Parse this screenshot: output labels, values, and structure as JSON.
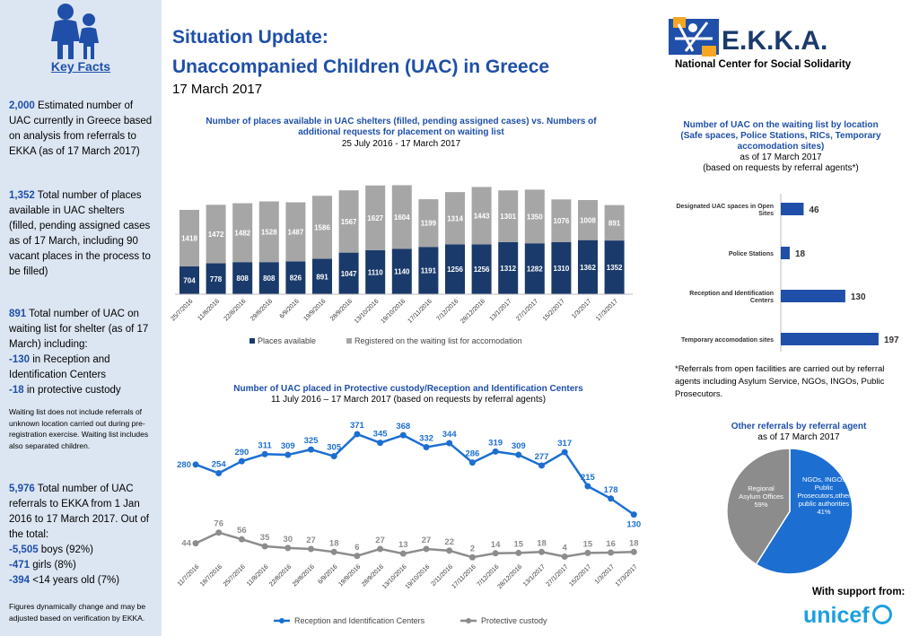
{
  "sidebar": {
    "key_facts": "Key Facts",
    "f1_num": "2,000",
    "f1_text": " Estimated number of UAC currently in Greece based on analysis from referrals to EKKA (as of 17 March 2017)",
    "f2_num": "1,352",
    "f2_text": " Total number of places available in UAC shelters (filled, pending assigned cases as of 17 March, including 90 vacant places in the process to be filled)",
    "f3_num": "891",
    "f3_text": " Total number of UAC on waiting list for shelter (as of 17 March) including:",
    "f3_b1": "-130",
    "f3_b1_text": " in Reception and Identification Centers",
    "f3_b2": "-18",
    "f3_b2_text": " in protective custody",
    "waiting_note": "Waiting list does not include referrals of unknown location carried out during pre-registration exercise. Waiting list includes also separated children.",
    "f4_num": "5,976",
    "f4_text": " Total number of UAC referrals to EKKA from 1 Jan 2016 to 17 March 2017. Out of the total:",
    "f4_b1": "-5,505",
    "f4_b1_text": " boys (92%)",
    "f4_b2": "-471",
    "f4_b2_text": " girls (8%)",
    "f4_b3": "-394",
    "f4_b3_text": " <14 years old (7%)",
    "footer_note": "Figures dynamically change and may be adjusted based on verification by EKKA."
  },
  "header": {
    "title_line1": "Situation Update:",
    "title_line2": "Unaccompanied Children (UAC) in Greece",
    "date": "17 March 2017",
    "org_name": "E.K.K.A.",
    "org_sub": "National Center for Social Solidarity"
  },
  "colors": {
    "navy": "#1a3a6b",
    "gray": "#a6a6a6",
    "blue": "#1f4fa8",
    "bright_blue": "#1c6fd1",
    "pie_gray": "#8c8c8c"
  },
  "note": "*Referrals from open facilities are carried out by referral agents including Asylum Service, NGOs, INGOs, Public Prosecutors.",
  "support": "With support from:",
  "unicef": "unicef",
  "chart_data": [
    {
      "type": "bar",
      "title": "Number of places available in UAC shelters (filled, pending assigned cases)  vs. Numbers of additional requests for placement on waiting list",
      "subtitle": "25 July 2016 -  17 March 2017",
      "stacked": true,
      "categories": [
        "25/7/2016",
        "11/8/2016",
        "22/8/2016",
        "29/8/2016",
        "6/9/2016",
        "19/9/2016",
        "28/9/2016",
        "13/10/2016",
        "19/10/2016",
        "17/11/2016",
        "7/12/2016",
        "28/12/2016",
        "13/1/2017",
        "27/1/2017",
        "15/2/2017",
        "1/3/2017",
        "17/3/2017"
      ],
      "series": [
        {
          "name": "Places available",
          "values": [
            704,
            778,
            808,
            808,
            826,
            891,
            1047,
            1110,
            1140,
            1191,
            1256,
            1256,
            1312,
            1282,
            1310,
            1362,
            1352
          ]
        },
        {
          "name": "Registered on the waiting list for accomodation",
          "values": [
            1418,
            1472,
            1482,
            1528,
            1487,
            1586,
            1567,
            1627,
            1604,
            1199,
            1314,
            1443,
            1301,
            1350,
            1076,
            1008,
            891
          ]
        }
      ],
      "legend": "bottom"
    },
    {
      "type": "line",
      "title": "Number of UAC placed in  Protective custody/Reception and Identification Centers",
      "subtitle": "11 July 2016 – 17 March 2017 (based on requests by referral agents)",
      "categories": [
        "11/7/2016",
        "18/7/2016",
        "25/7/2016",
        "11/8/2016",
        "22/8/2016",
        "29/8/2016",
        "6/9/2016",
        "19/9/2016",
        "28/9/2016",
        "13/10/2016",
        "19/10/2016",
        "2/11/2016",
        "17/11/2016",
        "7/12/2016",
        "28/12/2016",
        "13/1/2017",
        "27/1/2017",
        "15/2/2017",
        "1/3/2017",
        "17/3/2017"
      ],
      "series": [
        {
          "name": "Reception and Identification Centers",
          "values": [
            280,
            254,
            290,
            311,
            309,
            325,
            305,
            371,
            345,
            368,
            332,
            344,
            286,
            319,
            309,
            277,
            317,
            215,
            178,
            130
          ]
        },
        {
          "name": "Protective custody",
          "values": [
            44,
            76,
            56,
            35,
            30,
            27,
            18,
            6,
            27,
            13,
            27,
            22,
            2,
            14,
            15,
            18,
            4,
            15,
            16,
            18
          ]
        }
      ],
      "legend": "bottom"
    },
    {
      "type": "bar",
      "orientation": "horizontal",
      "title": "Number of UAC on the waiting list by location (Safe spaces, Police Stations, RICs, Temporary accomodation sites)",
      "subtitle1": "as of 17 March 2017",
      "subtitle2": "(based on requests by referral agents*)",
      "categories": [
        "Designated UAC spaces in Open Sites",
        "Police Stations",
        "Reception and Identification Centers",
        "Temporary accomodation sites"
      ],
      "values": [
        46,
        18,
        130,
        197
      ]
    },
    {
      "type": "pie",
      "title": "Other referrals by referral agent",
      "subtitle": "as of 17 March 2017",
      "slices": [
        {
          "label": "Regional Asylum Offices",
          "value": 59,
          "display": "59%"
        },
        {
          "label": "NGOs, INGOs Public Prosecutors,other public authorities",
          "value": 41,
          "display": "41%"
        }
      ]
    }
  ]
}
